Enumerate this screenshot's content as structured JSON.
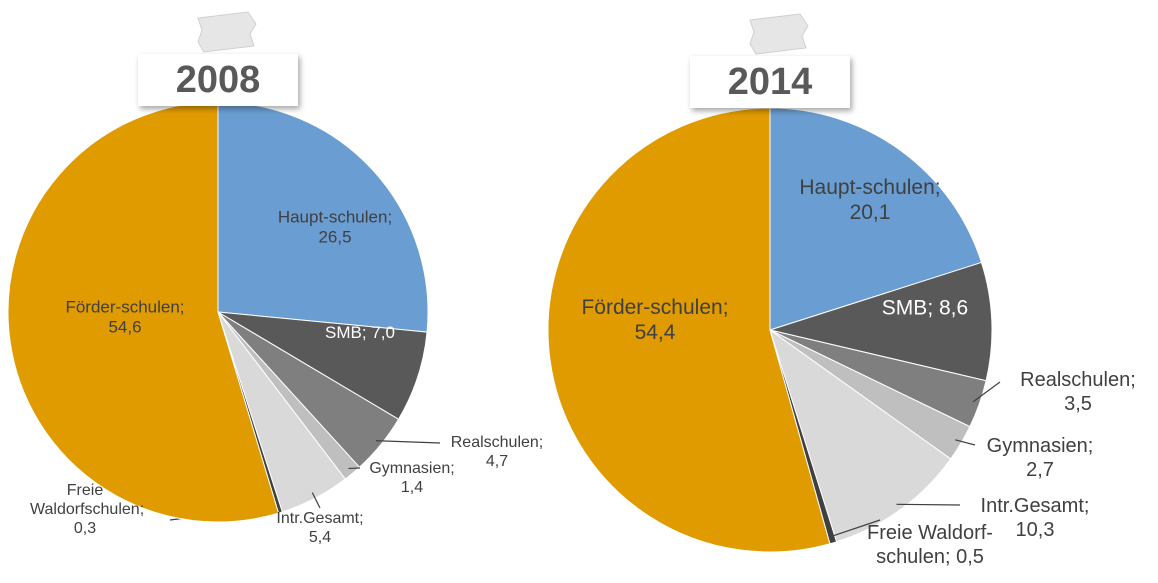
{
  "chart_data": [
    {
      "type": "pie",
      "title": "2008",
      "label_separator": ";",
      "categories": [
        "Haupt-schulen",
        "SMB",
        "Realschulen",
        "Gymnasien",
        "Intr.Gesamt",
        "Freie Waldorfschulen",
        "Förder-schulen"
      ],
      "values": [
        26.5,
        7.0,
        4.7,
        1.4,
        5.4,
        0.3,
        54.6
      ],
      "value_labels": [
        "26,5",
        "7,0",
        "4,7",
        "1,4",
        "5,4",
        "0,3",
        "54,6"
      ],
      "colors": [
        "#6a9dd1",
        "#595959",
        "#7f7f7f",
        "#bfbfbf",
        "#d9d9d9",
        "#404040",
        "#df9b00"
      ]
    },
    {
      "type": "pie",
      "title": "2014",
      "label_separator": ";",
      "categories": [
        "Haupt-schulen",
        "SMB",
        "Realschulen",
        "Gymnasien",
        "Intr.Gesamt",
        "Freie Waldorf-schulen",
        "Förder-schulen"
      ],
      "values": [
        20.1,
        8.6,
        3.5,
        2.7,
        10.3,
        0.5,
        54.4
      ],
      "value_labels": [
        "20,1",
        "8,6",
        "3,5",
        "2,7",
        "10,3",
        "0,5",
        "54,4"
      ],
      "colors": [
        "#6a9dd1",
        "#595959",
        "#7f7f7f",
        "#bfbfbf",
        "#d9d9d9",
        "#404040",
        "#df9b00"
      ]
    }
  ]
}
